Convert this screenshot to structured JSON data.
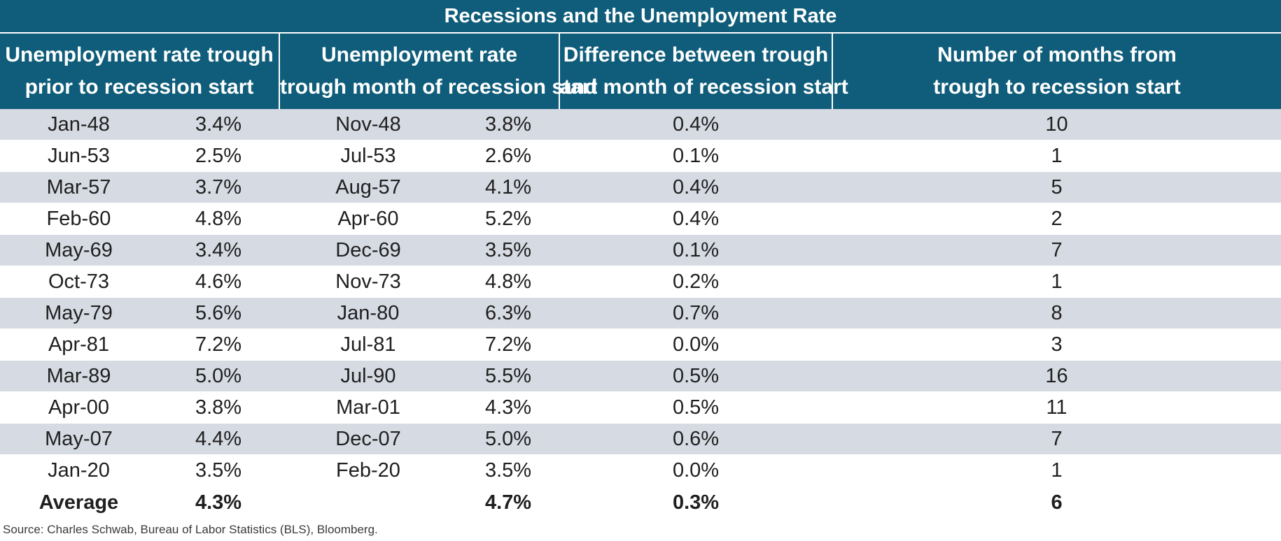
{
  "chart_data": {
    "type": "table",
    "title": "Recessions and the Unemployment Rate",
    "columns": [
      [
        "Unemployment rate trough",
        "prior to recession start"
      ],
      [
        "Unemployment rate",
        "trough month of recession start"
      ],
      [
        "Difference between trough",
        "and month of recession start"
      ],
      [
        "Number of months from",
        "trough to recession start"
      ]
    ],
    "rows": [
      [
        "Jan-48",
        "3.4%",
        "Nov-48",
        "3.8%",
        "0.4%",
        "10"
      ],
      [
        "Jun-53",
        "2.5%",
        "Jul-53",
        "2.6%",
        "0.1%",
        "1"
      ],
      [
        "Mar-57",
        "3.7%",
        "Aug-57",
        "4.1%",
        "0.4%",
        "5"
      ],
      [
        "Feb-60",
        "4.8%",
        "Apr-60",
        "5.2%",
        "0.4%",
        "2"
      ],
      [
        "May-69",
        "3.4%",
        "Dec-69",
        "3.5%",
        "0.1%",
        "7"
      ],
      [
        "Oct-73",
        "4.6%",
        "Nov-73",
        "4.8%",
        "0.2%",
        "1"
      ],
      [
        "May-79",
        "5.6%",
        "Jan-80",
        "6.3%",
        "0.7%",
        "8"
      ],
      [
        "Apr-81",
        "7.2%",
        "Jul-81",
        "7.2%",
        "0.0%",
        "3"
      ],
      [
        "Mar-89",
        "5.0%",
        "Jul-90",
        "5.5%",
        "0.5%",
        "16"
      ],
      [
        "Apr-00",
        "3.8%",
        "Mar-01",
        "4.3%",
        "0.5%",
        "11"
      ],
      [
        "May-07",
        "4.4%",
        "Dec-07",
        "5.0%",
        "0.6%",
        "7"
      ],
      [
        "Jan-20",
        "3.5%",
        "Feb-20",
        "3.5%",
        "0.0%",
        "1"
      ]
    ],
    "average": {
      "label": "Average",
      "trough_rate": "4.3%",
      "start_rate": "4.7%",
      "difference": "0.3%",
      "months": "6"
    },
    "source": "Source: Charles Schwab, Bureau of Labor Statistics (BLS), Bloomberg."
  },
  "colors": {
    "header_bg": "#0f5d7a",
    "header_text": "#ffffff",
    "band_row": "#d6dae2"
  }
}
